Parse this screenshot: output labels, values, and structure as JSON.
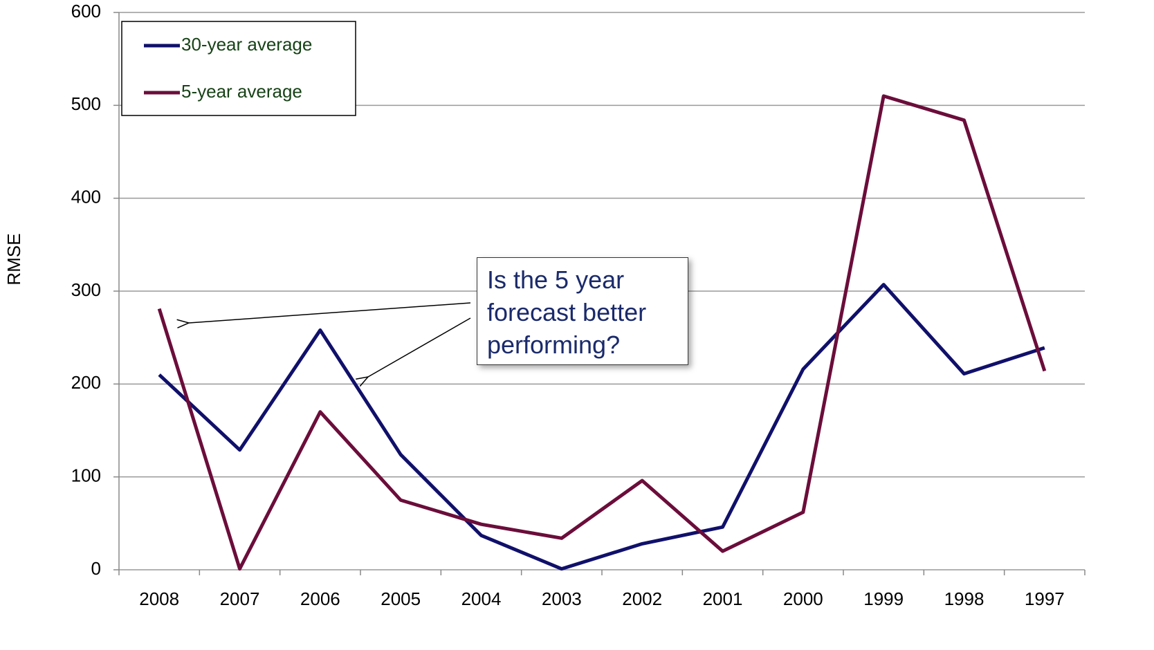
{
  "chart_data": {
    "type": "line",
    "y_label": "RMSE",
    "categories": [
      "2008",
      "2007",
      "2006",
      "2005",
      "2004",
      "2003",
      "2002",
      "2001",
      "2000",
      "1999",
      "1998",
      "1997"
    ],
    "series": [
      {
        "name": "30-year average",
        "color": "#10106b",
        "values": [
          210,
          129,
          258,
          124,
          37,
          1,
          28,
          46,
          216,
          307,
          211,
          239
        ]
      },
      {
        "name": "5-year average",
        "color": "#6b0d3a",
        "values": [
          281,
          1,
          170,
          75,
          49,
          34,
          96,
          20,
          62,
          510,
          484,
          214
        ]
      }
    ],
    "ylim": [
      0,
      600
    ],
    "yticks": [
      0,
      100,
      200,
      300,
      400,
      500,
      600
    ],
    "grid": true,
    "legend": "top-left",
    "annotation": "Is the 5 year forecast better performing?"
  }
}
